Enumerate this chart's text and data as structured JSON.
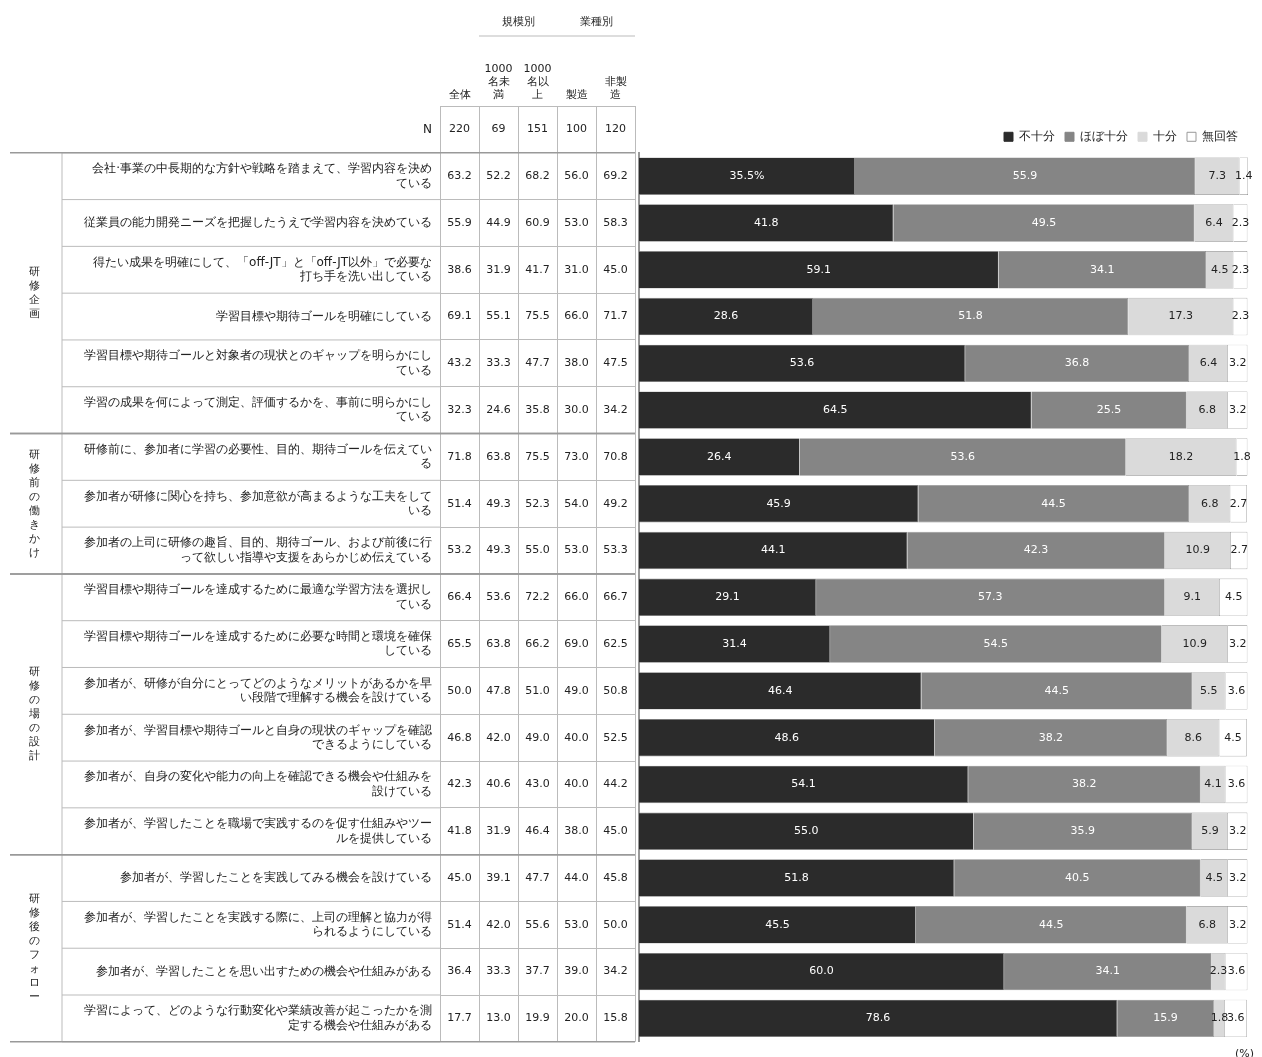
{
  "chart_data": [
    {
      "type": "heatmap",
      "grid": true,
      "data_labels": true,
      "categories": [
        "全体",
        "1000名未満",
        "1000名以上",
        "製造",
        "非製造"
      ],
      "y_categories": [
        "N",
        "会社·事業の中長期的な方針や戦略を踏まえて、学習内容を決めている",
        "従業員の能力開発ニーズを把握したうえで学習内容を決めている",
        "得たい成果を明確にして、「off-JT」と「off-JT以外」で必要な打ち手を洗い出している",
        "学習目標や期待ゴールを明確にしている",
        "学習目標や期待ゴールと対象者の現状とのギャップを明らかにしている",
        "学習の成果を何によって測定、評価するかを、事前に明らかにしている",
        "研修前に、参加者に学習の必要性、目的、期待ゴールを伝えている",
        "参加者が研修に関心を持ち、参加意欲が高まるような工夫をしている",
        "参加者の上司に研修の趣旨、目的、期待ゴール、および前後に行って欲しい指導や支援をあらかじめ伝えている",
        "学習目標や期待ゴールを達成するために最適な学習方法を選択している",
        "学習目標や期待ゴールを達成するために必要な時間と環境を確保している",
        "参加者が、研修が自分にとってどのようなメリットがあるかを早い段階で理解する機会を設けている",
        "参加者が、学習目標や期待ゴールと自身の現状のギャップを確認できるようにしている",
        "参加者が、自身の変化や能力の向上を確認できる機会や仕組みを設けている",
        "参加者が、学習したことを職場で実践するのを促す仕組みやツールを提供している",
        "参加者が、学習したことを実践してみる機会を設けている",
        "参加者が、学習したことを実践する際に、上司の理解と協力が得られるようにしている",
        "参加者が、学習したことを思い出すための機会や仕組みがある",
        "学習によって、どのような行動変化や業績改善が起こったかを測定する機会や仕組みがある"
      ],
      "cells": [
        [
          220,
          69,
          151,
          100,
          120
        ],
        [
          63.2,
          52.2,
          68.2,
          56.0,
          69.2
        ],
        [
          55.9,
          44.9,
          60.9,
          53.0,
          58.3
        ],
        [
          38.6,
          31.9,
          41.7,
          31.0,
          45.0
        ],
        [
          69.1,
          55.1,
          75.5,
          66.0,
          71.7
        ],
        [
          43.2,
          33.3,
          47.7,
          38.0,
          47.5
        ],
        [
          32.3,
          24.6,
          35.8,
          30.0,
          34.2
        ],
        [
          71.8,
          63.8,
          75.5,
          73.0,
          70.8
        ],
        [
          51.4,
          49.3,
          52.3,
          54.0,
          49.2
        ],
        [
          53.2,
          49.3,
          55.0,
          53.0,
          53.3
        ],
        [
          66.4,
          53.6,
          72.2,
          66.0,
          66.7
        ],
        [
          65.5,
          63.8,
          66.2,
          69.0,
          62.5
        ],
        [
          50.0,
          47.8,
          51.0,
          49.0,
          50.8
        ],
        [
          46.8,
          42.0,
          49.0,
          40.0,
          52.5
        ],
        [
          42.3,
          40.6,
          43.0,
          40.0,
          44.2
        ],
        [
          41.8,
          31.9,
          46.4,
          38.0,
          45.0
        ],
        [
          45.0,
          39.1,
          47.7,
          44.0,
          45.8
        ],
        [
          51.4,
          42.0,
          55.6,
          53.0,
          50.0
        ],
        [
          36.4,
          33.3,
          37.7,
          39.0,
          34.2
        ],
        [
          17.7,
          13.0,
          19.9,
          20.0,
          15.8
        ]
      ],
      "cell_labels": [
        [
          "220",
          "69",
          "151",
          "100",
          "120"
        ],
        [
          "63.2",
          "52.2",
          "68.2",
          "56.0",
          "69.2"
        ],
        [
          "55.9",
          "44.9",
          "60.9",
          "53.0",
          "58.3"
        ],
        [
          "38.6",
          "31.9",
          "41.7",
          "31.0",
          "45.0"
        ],
        [
          "69.1",
          "55.1",
          "75.5",
          "66.0",
          "71.7"
        ],
        [
          "43.2",
          "33.3",
          "47.7",
          "38.0",
          "47.5"
        ],
        [
          "32.3",
          "24.6",
          "35.8",
          "30.0",
          "34.2"
        ],
        [
          "71.8",
          "63.8",
          "75.5",
          "73.0",
          "70.8"
        ],
        [
          "51.4",
          "49.3",
          "52.3",
          "54.0",
          "49.2"
        ],
        [
          "53.2",
          "49.3",
          "55.0",
          "53.0",
          "53.3"
        ],
        [
          "66.4",
          "53.6",
          "72.2",
          "66.0",
          "66.7"
        ],
        [
          "65.5",
          "63.8",
          "66.2",
          "69.0",
          "62.5"
        ],
        [
          "50.0",
          "47.8",
          "51.0",
          "49.0",
          "50.8"
        ],
        [
          "46.8",
          "42.0",
          "49.0",
          "40.0",
          "52.5"
        ],
        [
          "42.3",
          "40.6",
          "43.0",
          "40.0",
          "44.2"
        ],
        [
          "41.8",
          "31.9",
          "46.4",
          "38.0",
          "45.0"
        ],
        [
          "45.0",
          "39.1",
          "47.7",
          "44.0",
          "45.8"
        ],
        [
          "51.4",
          "42.0",
          "55.6",
          "53.0",
          "50.0"
        ],
        [
          "36.4",
          "33.3",
          "37.7",
          "39.0",
          "34.2"
        ],
        [
          "17.7",
          "13.0",
          "19.9",
          "20.0",
          "15.8"
        ]
      ],
      "annotations": [
        "規模別",
        "業種別",
        "研修企画",
        "研修前の働きかけ",
        "研修の場の設計",
        "研修後のフォロー"
      ]
    },
    {
      "type": "bar",
      "orientation": "horizontal",
      "stacked": true,
      "legend": "top right",
      "tick_labels": false,
      "xlim": [
        0,
        100.1
      ],
      "categories": [
        null,
        null,
        null,
        null,
        null,
        null,
        null,
        null,
        null,
        null,
        null,
        null,
        null,
        null,
        null,
        null,
        null,
        null,
        null
      ],
      "series": [
        {
          "name": "不十分",
          "color": "#2b2b2b",
          "values": [
            35.5,
            41.8,
            59.1,
            28.6,
            53.6,
            64.5,
            26.4,
            45.9,
            44.1,
            29.1,
            31.4,
            46.4,
            48.6,
            54.1,
            55.0,
            51.8,
            45.5,
            60.0,
            78.6
          ],
          "value_labels": [
            "35.5%",
            "41.8",
            "59.1",
            "28.6",
            "53.6",
            "64.5",
            "26.4",
            "45.9",
            "44.1",
            "29.1",
            "31.4",
            "46.4",
            "48.6",
            "54.1",
            "55.0",
            "51.8",
            "45.5",
            "60.0",
            "78.6"
          ]
        },
        {
          "name": "ほぼ十分",
          "color": "#858585",
          "values": [
            55.9,
            49.5,
            34.1,
            51.8,
            36.8,
            25.5,
            53.6,
            44.5,
            42.3,
            57.3,
            54.5,
            44.5,
            38.2,
            38.2,
            35.9,
            40.5,
            44.5,
            34.1,
            15.9
          ],
          "value_labels": [
            "55.9",
            "49.5",
            "34.1",
            "51.8",
            "36.8",
            "25.5",
            "53.6",
            "44.5",
            "42.3",
            "57.3",
            "54.5",
            "44.5",
            "38.2",
            "38.2",
            "35.9",
            "40.5",
            "44.5",
            "34.1",
            "15.9"
          ]
        },
        {
          "name": "十分",
          "color": "#dadada",
          "values": [
            7.3,
            6.4,
            4.5,
            17.3,
            6.4,
            6.8,
            18.2,
            6.8,
            10.9,
            9.1,
            10.9,
            5.5,
            8.6,
            4.1,
            5.9,
            4.5,
            6.8,
            2.3,
            1.8
          ],
          "value_labels": [
            "7.3",
            "6.4",
            "4.5",
            "17.3",
            "6.4",
            "6.8",
            "18.2",
            "6.8",
            "10.9",
            "9.1",
            "10.9",
            "5.5",
            "8.6",
            "4.1",
            "5.9",
            "4.5",
            "6.8",
            "2.3",
            "1.8"
          ]
        },
        {
          "name": "無回答",
          "color": "#ffffff",
          "values": [
            1.4,
            2.3,
            2.3,
            2.3,
            3.2,
            3.2,
            1.8,
            2.7,
            2.7,
            4.5,
            3.2,
            3.6,
            4.5,
            3.6,
            3.2,
            3.2,
            3.2,
            3.6,
            3.6
          ],
          "value_labels": [
            "1.4",
            "2.3",
            "2.3",
            "2.3",
            "3.2",
            "3.2",
            "1.8",
            "2.7",
            "2.7",
            "4.5",
            "3.2",
            "3.6",
            "4.5",
            "3.6",
            "3.2",
            "3.2",
            "3.2",
            "3.6",
            "3.6"
          ]
        }
      ],
      "annotations": [
        "(%)"
      ]
    }
  ]
}
